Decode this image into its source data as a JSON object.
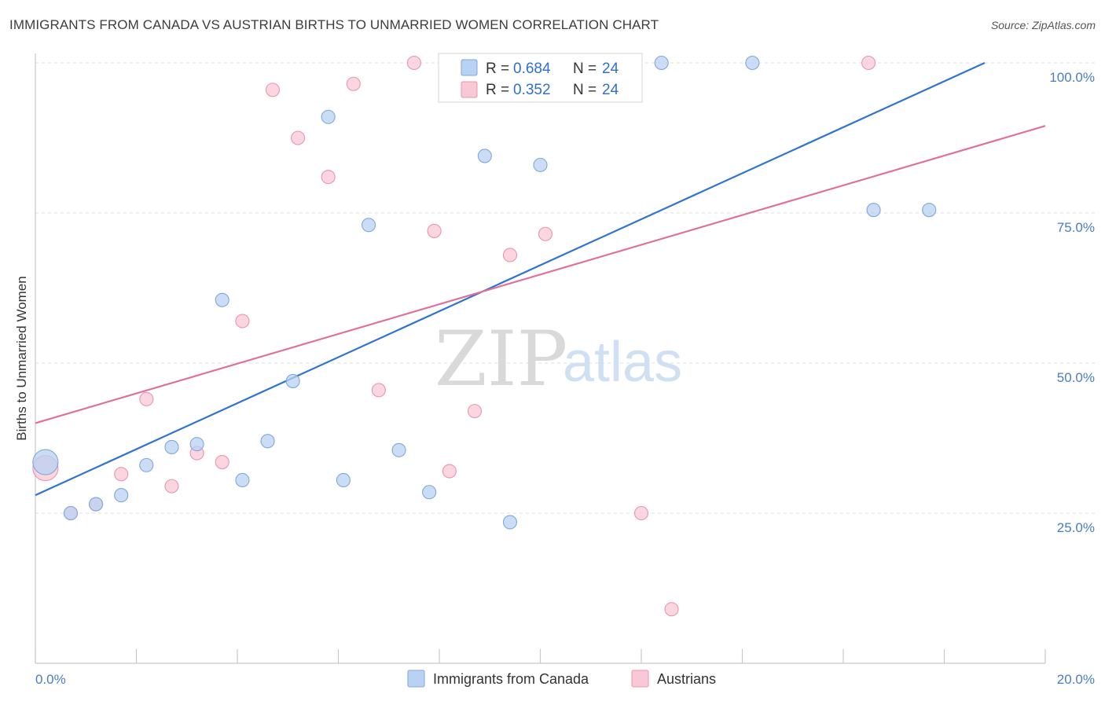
{
  "title": "IMMIGRANTS FROM CANADA VS AUSTRIAN BIRTHS TO UNMARRIED WOMEN CORRELATION CHART",
  "source": "Source: ZipAtlas.com",
  "watermark": {
    "zip": "ZIP",
    "atlas": "atlas"
  },
  "legend_stats": [
    {
      "r_label": "R =",
      "r_value": "0.684",
      "n_label": "N =",
      "n_value": "24"
    },
    {
      "r_label": "R =",
      "r_value": "0.352",
      "n_label": "N =",
      "n_value": "24"
    }
  ],
  "colors": {
    "blue_fill": "#b9d1f2",
    "blue_stroke": "#7ea7e0",
    "blue_line": "#2f74cf",
    "pink_fill": "#f8c8d6",
    "pink_stroke": "#ec93ae",
    "pink_line": "#e0709a",
    "grid": "#dcdcdc"
  },
  "chart_data": {
    "type": "scatter",
    "xlabel": "",
    "ylabel": "Births to Unmarried Women",
    "xlim": [
      0,
      20
    ],
    "ylim": [
      0,
      105
    ],
    "x_tick_labels": [
      "0.0%",
      "20.0%"
    ],
    "y_tick_labels": [
      "25.0%",
      "50.0%",
      "75.0%",
      "100.0%"
    ],
    "y_ticks": [
      25,
      50,
      75,
      100
    ],
    "legend_position": "top-center",
    "series": [
      {
        "name": "Immigrants from Canada",
        "color": "#b9d1f2",
        "points": [
          {
            "x": 0.2,
            "y": 33.5,
            "big": true
          },
          {
            "x": 0.7,
            "y": 25.0
          },
          {
            "x": 1.2,
            "y": 26.5
          },
          {
            "x": 1.7,
            "y": 28.0
          },
          {
            "x": 2.2,
            "y": 33.0
          },
          {
            "x": 2.7,
            "y": 36.0
          },
          {
            "x": 3.2,
            "y": 36.5
          },
          {
            "x": 3.7,
            "y": 60.5
          },
          {
            "x": 4.1,
            "y": 30.5
          },
          {
            "x": 4.6,
            "y": 37.0
          },
          {
            "x": 5.1,
            "y": 47.0
          },
          {
            "x": 5.8,
            "y": 91.0
          },
          {
            "x": 6.1,
            "y": 30.5
          },
          {
            "x": 6.6,
            "y": 73.0
          },
          {
            "x": 7.2,
            "y": 35.5
          },
          {
            "x": 7.8,
            "y": 28.5
          },
          {
            "x": 8.9,
            "y": 84.5
          },
          {
            "x": 9.4,
            "y": 23.5
          },
          {
            "x": 9.7,
            "y": 100.0
          },
          {
            "x": 10.0,
            "y": 83.0
          },
          {
            "x": 12.4,
            "y": 100.0
          },
          {
            "x": 14.2,
            "y": 100.0
          },
          {
            "x": 16.6,
            "y": 75.5
          },
          {
            "x": 17.7,
            "y": 75.5
          }
        ],
        "trend": {
          "x1": 0,
          "y1": 28.0,
          "x2": 18.8,
          "y2": 100.0
        }
      },
      {
        "name": "Austrians",
        "color": "#f8c8d6",
        "points": [
          {
            "x": 0.2,
            "y": 32.5,
            "big": true
          },
          {
            "x": 0.7,
            "y": 25.0
          },
          {
            "x": 1.2,
            "y": 26.5
          },
          {
            "x": 1.7,
            "y": 31.5
          },
          {
            "x": 2.2,
            "y": 44.0
          },
          {
            "x": 2.7,
            "y": 29.5
          },
          {
            "x": 3.2,
            "y": 35.0
          },
          {
            "x": 3.7,
            "y": 33.5
          },
          {
            "x": 4.1,
            "y": 57.0
          },
          {
            "x": 4.7,
            "y": 95.5
          },
          {
            "x": 5.2,
            "y": 87.5
          },
          {
            "x": 5.8,
            "y": 81.0
          },
          {
            "x": 6.3,
            "y": 96.5
          },
          {
            "x": 6.8,
            "y": 45.5
          },
          {
            "x": 7.5,
            "y": 100.0
          },
          {
            "x": 7.9,
            "y": 72.0
          },
          {
            "x": 8.2,
            "y": 32.0
          },
          {
            "x": 8.7,
            "y": 42.0
          },
          {
            "x": 9.4,
            "y": 68.0
          },
          {
            "x": 10.1,
            "y": 71.5
          },
          {
            "x": 11.4,
            "y": 100.0
          },
          {
            "x": 12.0,
            "y": 25.0
          },
          {
            "x": 12.6,
            "y": 9.0
          },
          {
            "x": 16.5,
            "y": 100.0
          }
        ],
        "trend": {
          "x1": 0,
          "y1": 40.0,
          "x2": 20,
          "y2": 89.5
        }
      }
    ]
  }
}
